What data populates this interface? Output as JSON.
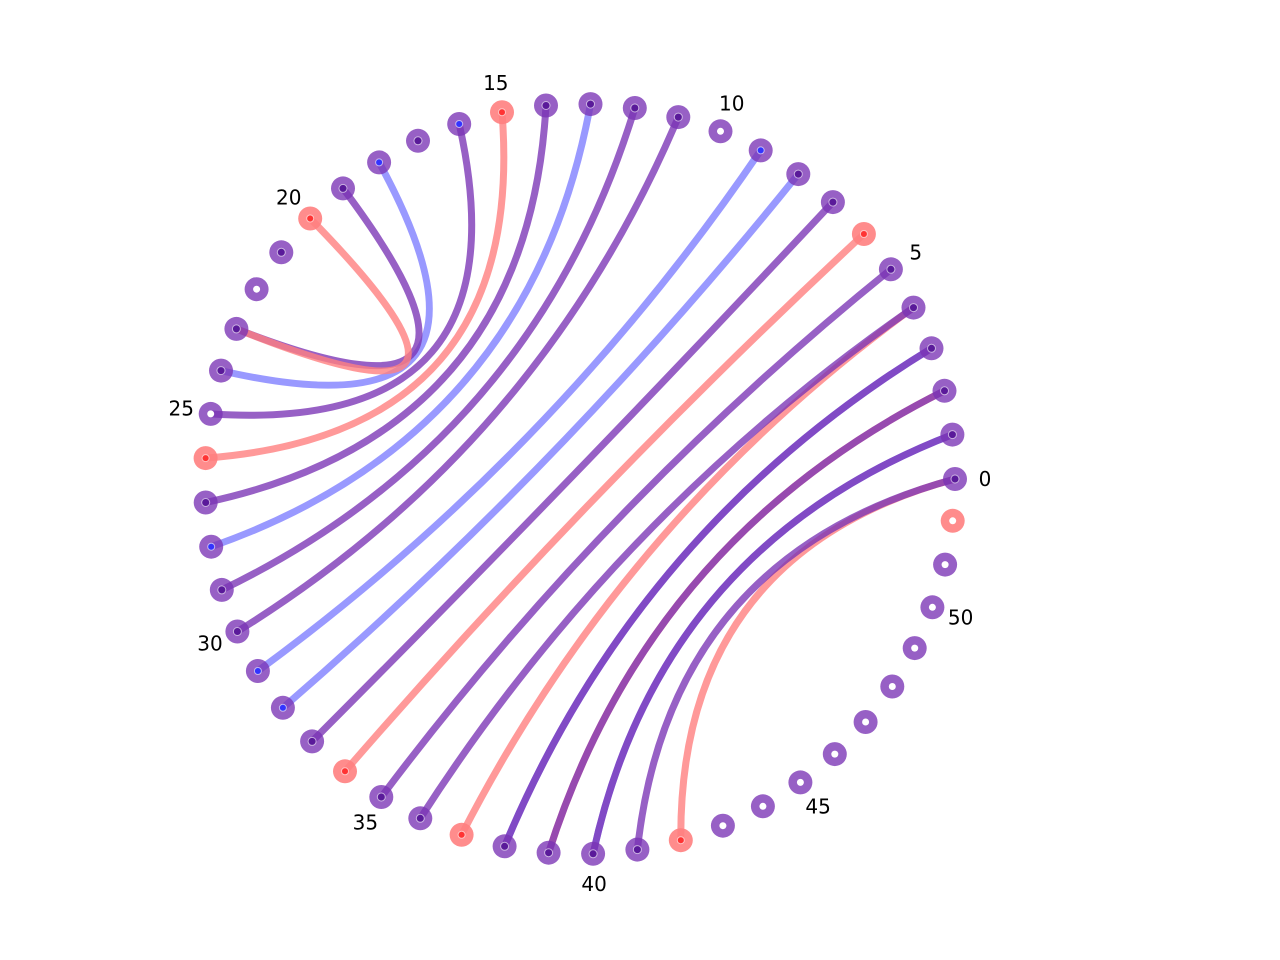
{
  "chart_data": {
    "type": "arc-diagram",
    "node_count": 53,
    "tick_labels": [
      "0",
      "5",
      "10",
      "15",
      "20",
      "25",
      "30",
      "35",
      "40",
      "45",
      "50"
    ],
    "colors": {
      "purple": "#7a33b5",
      "red": "#ff8080",
      "blue": "#8080ff",
      "red_center": "#ff3333",
      "blue_center": "#3333ff",
      "purple_center": "#5a1a9a"
    },
    "node_styles": {
      "default": "purple",
      "red": [
        6,
        15,
        20,
        26,
        34,
        37,
        42,
        52
      ],
      "blue": [
        9,
        16,
        18,
        28,
        31,
        32
      ],
      "marked": [
        0,
        1,
        2,
        3,
        4,
        5,
        7,
        8,
        11,
        12,
        13,
        14,
        17,
        19,
        21,
        23,
        24,
        27,
        29,
        30,
        33,
        35,
        36,
        38,
        39,
        40,
        41
      ]
    },
    "links": [
      {
        "source": 0,
        "target": 42,
        "color": "red"
      },
      {
        "source": 0,
        "target": 41,
        "color": "purple"
      },
      {
        "source": 1,
        "target": 40,
        "color": "blue"
      },
      {
        "source": 1,
        "target": 40,
        "color": "purple"
      },
      {
        "source": 2,
        "target": 39,
        "color": "red"
      },
      {
        "source": 2,
        "target": 39,
        "color": "purple"
      },
      {
        "source": 3,
        "target": 38,
        "color": "blue"
      },
      {
        "source": 3,
        "target": 38,
        "color": "purple"
      },
      {
        "source": 4,
        "target": 37,
        "color": "red"
      },
      {
        "source": 4,
        "target": 36,
        "color": "purple"
      },
      {
        "source": 5,
        "target": 35,
        "color": "purple"
      },
      {
        "source": 6,
        "target": 34,
        "color": "red"
      },
      {
        "source": 7,
        "target": 33,
        "color": "purple"
      },
      {
        "source": 8,
        "target": 32,
        "color": "blue"
      },
      {
        "source": 9,
        "target": 31,
        "color": "blue"
      },
      {
        "source": 11,
        "target": 30,
        "color": "purple"
      },
      {
        "source": 12,
        "target": 29,
        "color": "purple"
      },
      {
        "source": 13,
        "target": 28,
        "color": "blue"
      },
      {
        "source": 14,
        "target": 27,
        "color": "purple"
      },
      {
        "source": 15,
        "target": 26,
        "color": "red"
      },
      {
        "source": 16,
        "target": 25,
        "color": "purple"
      },
      {
        "source": 18,
        "target": 24,
        "color": "blue"
      },
      {
        "source": 19,
        "target": 23,
        "color": "purple"
      },
      {
        "source": 20,
        "target": 23,
        "color": "red"
      }
    ]
  }
}
